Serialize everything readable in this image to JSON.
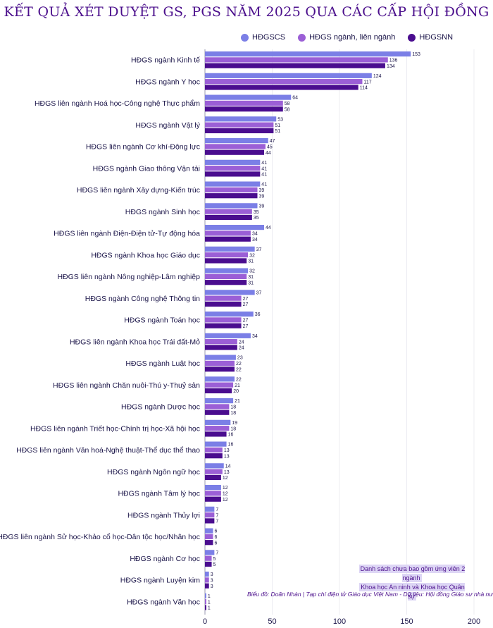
{
  "title": "KẾT QUẢ XÉT DUYỆT GS, PGS NĂM 2025 QUA CÁC CẤP HỘI ĐỒNG",
  "colors": {
    "series": [
      "#7b7fe6",
      "#9b5fd6",
      "#4a0d8f"
    ],
    "title": "#4b0f8c",
    "text": "#1a1448"
  },
  "note_lines": [
    "Danh sách chưa bao gồm ứng viên 2 ngành",
    "Khoa học An ninh và Khoa học Quân sự"
  ],
  "source": "Biểu đồ: Doãn Nhàn | Tạp chí điện tử Giáo dục Việt Nam  -  Dữ liệu: Hội đồng Giáo sư nhà nước",
  "chart_data": {
    "type": "bar",
    "orientation": "horizontal",
    "title": "KẾT QUẢ XÉT DUYỆT GS, PGS NĂM 2025 QUA CÁC CẤP HỘI ĐỒNG",
    "xlim": [
      0,
      200
    ],
    "xticks": [
      0,
      50,
      100,
      150,
      200
    ],
    "legend_position": "top-right",
    "categories": [
      "HĐGS ngành Kinh tế",
      "HĐGS ngành Y học",
      "HĐGS liên ngành Hoá học-Công nghệ Thực phẩm",
      "HĐGS ngành Vật lý",
      "HĐGS liên ngành Cơ khí-Động lực",
      "HĐGS ngành Giao thông Vận tải",
      "HĐGS liên ngành Xây dựng-Kiến trúc",
      "HĐGS ngành Sinh học",
      "HĐGS liên ngành Điện-Điện tử-Tự động hóa",
      "HĐGS ngành Khoa học Giáo dục",
      "HĐGS liên ngành Nông nghiệp-Lâm nghiệp",
      "HĐGS ngành Công nghệ Thông tin",
      "HĐGS ngành Toán học",
      "HĐGS liên ngành Khoa học Trái đất-Mỏ",
      "HĐGS ngành Luật học",
      "HĐGS liên ngành Chăn nuôi-Thú y-Thuỷ sản",
      "HĐGS ngành Dược học",
      "HĐGS liên ngành Triết học-Chính trị học-Xã hội học",
      "HĐGS liên ngành Văn hoá-Nghệ thuật-Thể dục thể thao",
      "HĐGS ngành Ngôn ngữ học",
      "HĐGS ngành Tâm lý học",
      "HĐGS ngành Thủy lợi",
      "HĐGS liên ngành Sử học-Khảo cổ học-Dân tộc học/Nhân học",
      "HĐGS ngành Cơ học",
      "HĐGS ngành Luyện kim",
      "HĐGS ngành Văn học"
    ],
    "series": [
      {
        "name": "HĐGSCS",
        "values": [
          153,
          124,
          64,
          53,
          47,
          41,
          41,
          39,
          44,
          37,
          32,
          37,
          36,
          34,
          23,
          22,
          21,
          19,
          16,
          14,
          12,
          7,
          6,
          7,
          3,
          1
        ]
      },
      {
        "name": "HĐGS ngành, liên ngành",
        "values": [
          136,
          117,
          58,
          51,
          45,
          41,
          39,
          35,
          34,
          32,
          31,
          27,
          27,
          24,
          22,
          21,
          18,
          18,
          13,
          13,
          12,
          7,
          6,
          5,
          3,
          1
        ]
      },
      {
        "name": "HĐGSNN",
        "values": [
          134,
          114,
          58,
          51,
          44,
          41,
          39,
          35,
          34,
          31,
          31,
          27,
          27,
          24,
          22,
          20,
          18,
          16,
          13,
          12,
          12,
          7,
          6,
          5,
          3,
          1
        ]
      }
    ]
  }
}
